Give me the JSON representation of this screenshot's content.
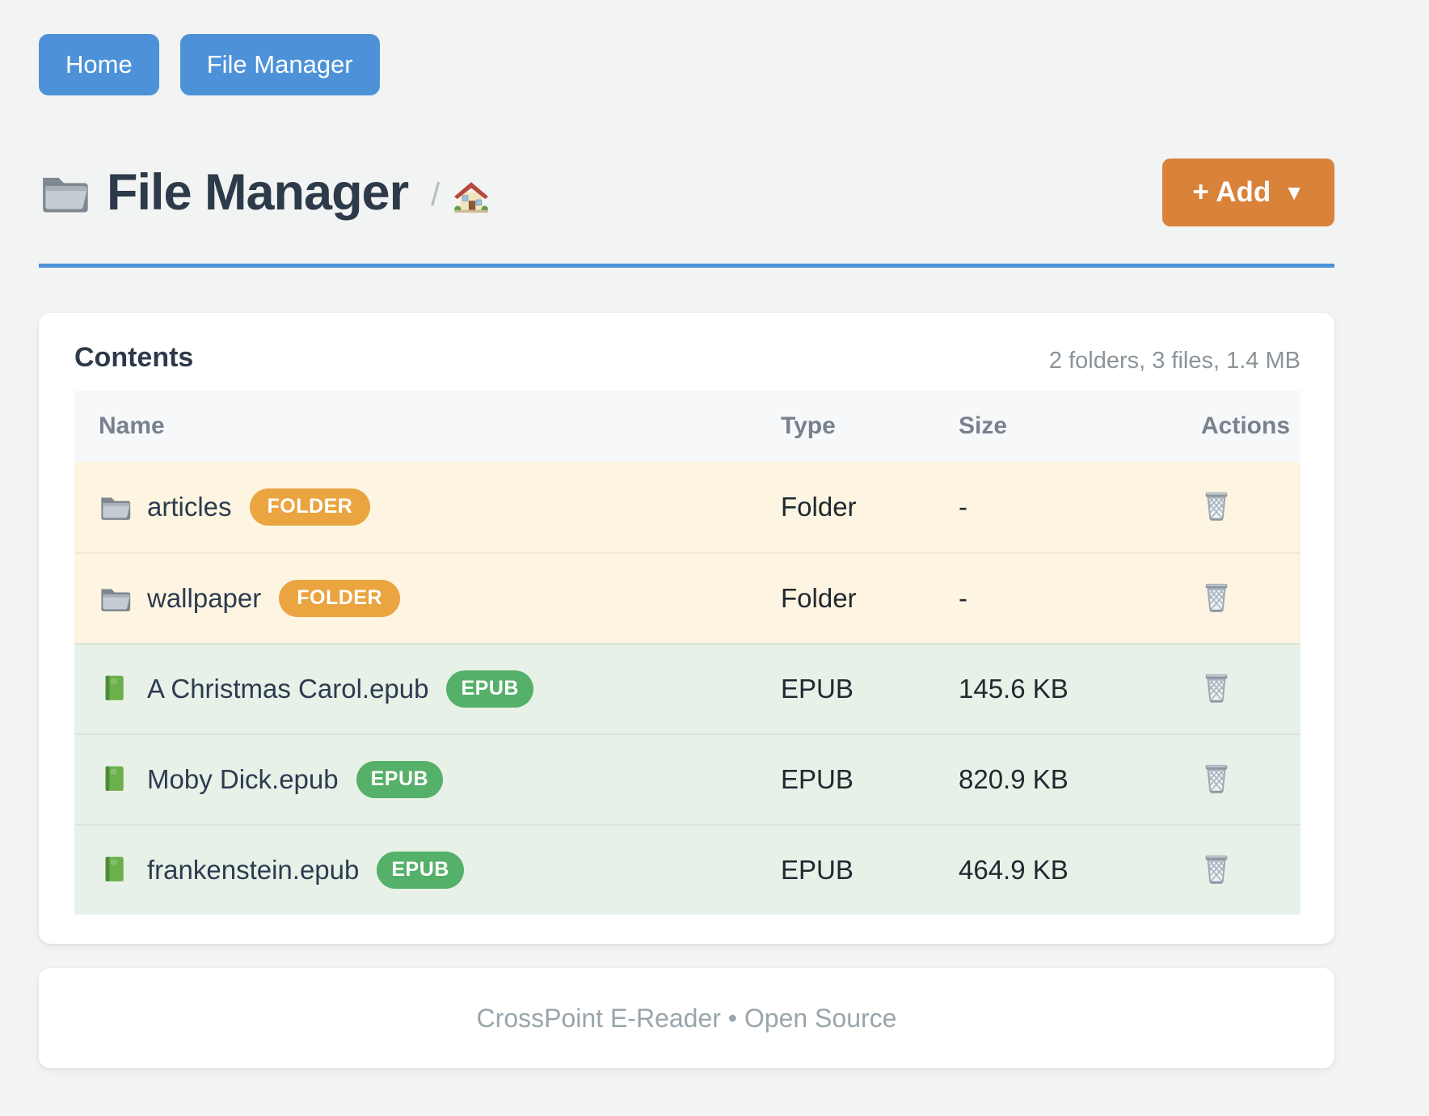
{
  "nav": {
    "home_label": "Home",
    "file_manager_label": "File Manager"
  },
  "header": {
    "title": "File Manager",
    "title_icon": "folder-icon",
    "breadcrumb_separator": "/",
    "breadcrumb_home_icon": "home-icon",
    "add_button_label": "+ Add",
    "add_button_caret": "▼"
  },
  "contents": {
    "heading": "Contents",
    "summary": "2 folders, 3 files, 1.4 MB",
    "columns": {
      "name": "Name",
      "type": "Type",
      "size": "Size",
      "actions": "Actions"
    },
    "rows": [
      {
        "name": "articles",
        "badge": "FOLDER",
        "type": "Folder",
        "size": "-",
        "kind": "folder",
        "icon": "folder-icon",
        "action_icon": "trash-icon"
      },
      {
        "name": "wallpaper",
        "badge": "FOLDER",
        "type": "Folder",
        "size": "-",
        "kind": "folder",
        "icon": "folder-icon",
        "action_icon": "trash-icon"
      },
      {
        "name": "A Christmas Carol.epub",
        "badge": "EPUB",
        "type": "EPUB",
        "size": "145.6 KB",
        "kind": "epub",
        "icon": "book-icon",
        "action_icon": "trash-icon"
      },
      {
        "name": "Moby Dick.epub",
        "badge": "EPUB",
        "type": "EPUB",
        "size": "820.9 KB",
        "kind": "epub",
        "icon": "book-icon",
        "action_icon": "trash-icon"
      },
      {
        "name": "frankenstein.epub",
        "badge": "EPUB",
        "type": "EPUB",
        "size": "464.9 KB",
        "kind": "epub",
        "icon": "book-icon",
        "action_icon": "trash-icon"
      }
    ]
  },
  "footer": {
    "text": "CrossPoint E-Reader • Open Source"
  },
  "colors": {
    "accent-blue": "#4d92d8",
    "accent-orange": "#d9823a",
    "badge-orange": "#eaa440",
    "badge-green": "#55b069",
    "row-folder-bg": "#fdf5e1",
    "row-epub-bg": "#e8f1e8",
    "page-bg": "#f2f3f3",
    "title-color": "#2c3a49",
    "muted": "#8b9399"
  }
}
